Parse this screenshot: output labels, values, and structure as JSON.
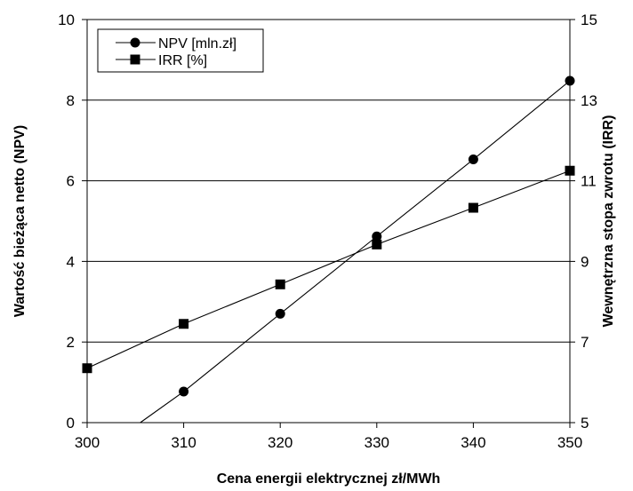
{
  "chart_data": {
    "type": "line",
    "xlabel": "Cena energii elektrycznej zł/MWh",
    "ylabel_left": "Wartość bieżąca netto (NPV)",
    "ylabel_right": "Wewnętrzna stopa zwrotu (IRR)",
    "xlim": [
      300,
      350
    ],
    "ylim_left": [
      0,
      10
    ],
    "ylim_right": [
      5,
      15
    ],
    "x_ticks": [
      "300",
      "310",
      "320",
      "330",
      "340",
      "350"
    ],
    "y_left_ticks": [
      "0",
      "2",
      "4",
      "6",
      "8",
      "10"
    ],
    "y_right_ticks": [
      "5",
      "7",
      "9",
      "11",
      "13",
      "15"
    ],
    "grid": "horizontal",
    "legend_position": "top-left",
    "series": [
      {
        "name": "NPV [mln.zł]",
        "axis": "left",
        "marker": "circle",
        "x": [
          310,
          320,
          330,
          340,
          350
        ],
        "y": [
          0.77,
          2.7,
          4.62,
          6.53,
          8.48
        ],
        "line_extends_to": [
          305.5,
          0
        ]
      },
      {
        "name": "IRR [%]",
        "axis": "right",
        "marker": "square",
        "x": [
          300,
          310,
          320,
          330,
          340,
          350
        ],
        "y": [
          6.35,
          7.45,
          8.43,
          9.42,
          10.33,
          11.25
        ]
      }
    ]
  }
}
